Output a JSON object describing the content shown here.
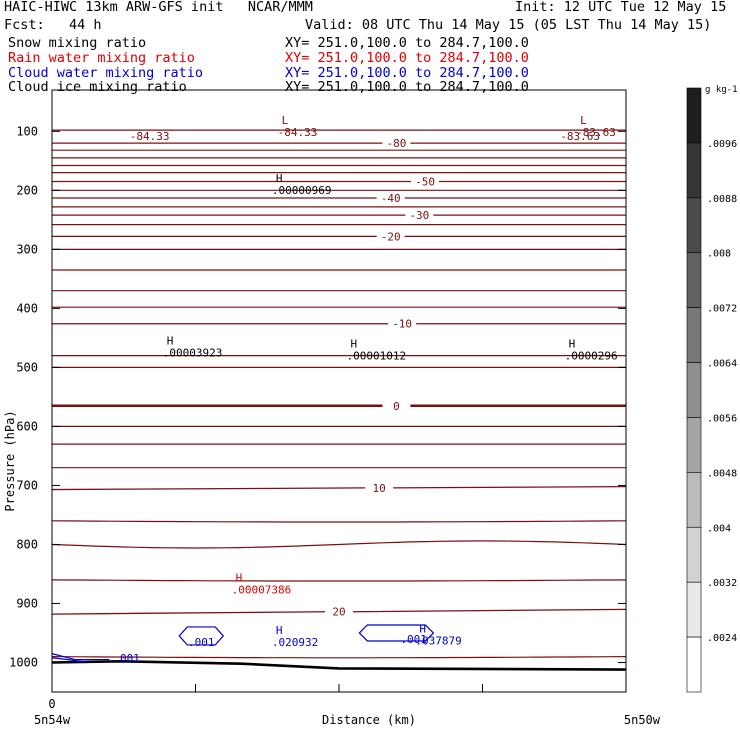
{
  "header": {
    "title": "HAIC-HIWC 13km ARW-GFS init   NCAR/MMM",
    "init": "Init: 12 UTC Tue 12 May 15",
    "fcst": "Fcst:   44 h",
    "valid": "Valid: 08 UTC Thu 14 May 15 (05 LST Thu 14 May 15)",
    "fields": [
      {
        "name": "Snow mixing ratio",
        "xy": "XY= 251.0,100.0 to 284.7,100.0",
        "color": "#000000"
      },
      {
        "name": "Rain water mixing ratio",
        "xy": "XY= 251.0,100.0 to 284.7,100.0",
        "color": "#e00000"
      },
      {
        "name": "Cloud water mixing ratio",
        "xy": "XY= 251.0,100.0 to 284.7,100.0",
        "color": "#0000d0"
      },
      {
        "name": "Cloud ice mixing ratio",
        "xy": "XY= 251.0,100.0 to 284.7,100.0",
        "color": "#000000"
      }
    ]
  },
  "chart_data": {
    "type": "line",
    "ylabel": "Pressure (hPa)",
    "xlabel": "Distance (km)",
    "ylim": [
      1050,
      30
    ],
    "xlim": [
      0,
      100
    ],
    "yticks": [
      100,
      200,
      300,
      400,
      500,
      600,
      700,
      800,
      900,
      1000
    ],
    "xtick_label_left": "0",
    "x_end_labels": [
      "5n54w",
      "5n50w"
    ],
    "temperature_contour_color": "#7a1010",
    "temperature_contours": [
      {
        "label": "-84.33",
        "label_x": 17,
        "y": [
          108,
          108
        ]
      },
      {
        "label": "-80",
        "label_x": 60,
        "y": [
          120,
          120
        ]
      },
      {
        "label": "-83.63",
        "label_x": 92,
        "y": [
          108,
          108
        ]
      },
      {
        "label": "-50",
        "label_x": 65,
        "y": [
          185,
          185
        ]
      },
      {
        "label": "-40",
        "label_x": 59,
        "y": [
          213,
          213
        ]
      },
      {
        "label": "-30",
        "label_x": 64,
        "y": [
          242,
          242
        ]
      },
      {
        "label": "-20",
        "label_x": 59,
        "y": [
          278,
          278
        ]
      },
      {
        "label": "-10",
        "label_x": 61,
        "y": [
          426,
          426
        ]
      },
      {
        "label": "0",
        "label_x": 60,
        "y": [
          565,
          565
        ],
        "bold": true
      },
      {
        "label": "10",
        "label_x": 57,
        "y": [
          707,
          702
        ]
      },
      {
        "label": "20",
        "label_x": 50,
        "y": [
          918,
          910
        ]
      }
    ],
    "maxima": [
      {
        "letter": "L",
        "value": "-84.33",
        "x": 40,
        "p": 88,
        "color": "#7a1010"
      },
      {
        "letter": "L",
        "value": "-83.63",
        "x": 92,
        "p": 88,
        "color": "#7a1010"
      },
      {
        "letter": "H",
        "value": ".00000969",
        "x": 39,
        "p": 186,
        "color": "#000000"
      },
      {
        "letter": "H",
        "value": ".00003923",
        "x": 20,
        "p": 461,
        "color": "#000000"
      },
      {
        "letter": "H",
        "value": ".00001012",
        "x": 52,
        "p": 466,
        "color": "#000000"
      },
      {
        "letter": "H",
        "value": ".0000296",
        "x": 90,
        "p": 466,
        "color": "#000000"
      },
      {
        "letter": "H",
        "value": ".00007386",
        "x": 32,
        "p": 863,
        "color": "#e00000"
      },
      {
        "letter": "H",
        "value": ".020932",
        "x": 39,
        "p": 952,
        "color": "#0000d0"
      },
      {
        "letter": "H",
        "value": ".037879",
        "x": 64,
        "p": 949,
        "color": "#0000d0"
      }
    ],
    "cloud_water_contours": [
      {
        "label": ".001",
        "label_x": 22
      },
      {
        "label": ".001",
        "label_x": 58
      },
      {
        "label": ".001",
        "label_x": 10
      }
    ],
    "colorbar": {
      "unit": "g kg-1",
      "ticks": [
        ".0096",
        ".0088",
        ".008",
        ".0072",
        ".0064",
        ".0056",
        ".0048",
        ".004",
        ".0032",
        ".0024"
      ]
    }
  }
}
